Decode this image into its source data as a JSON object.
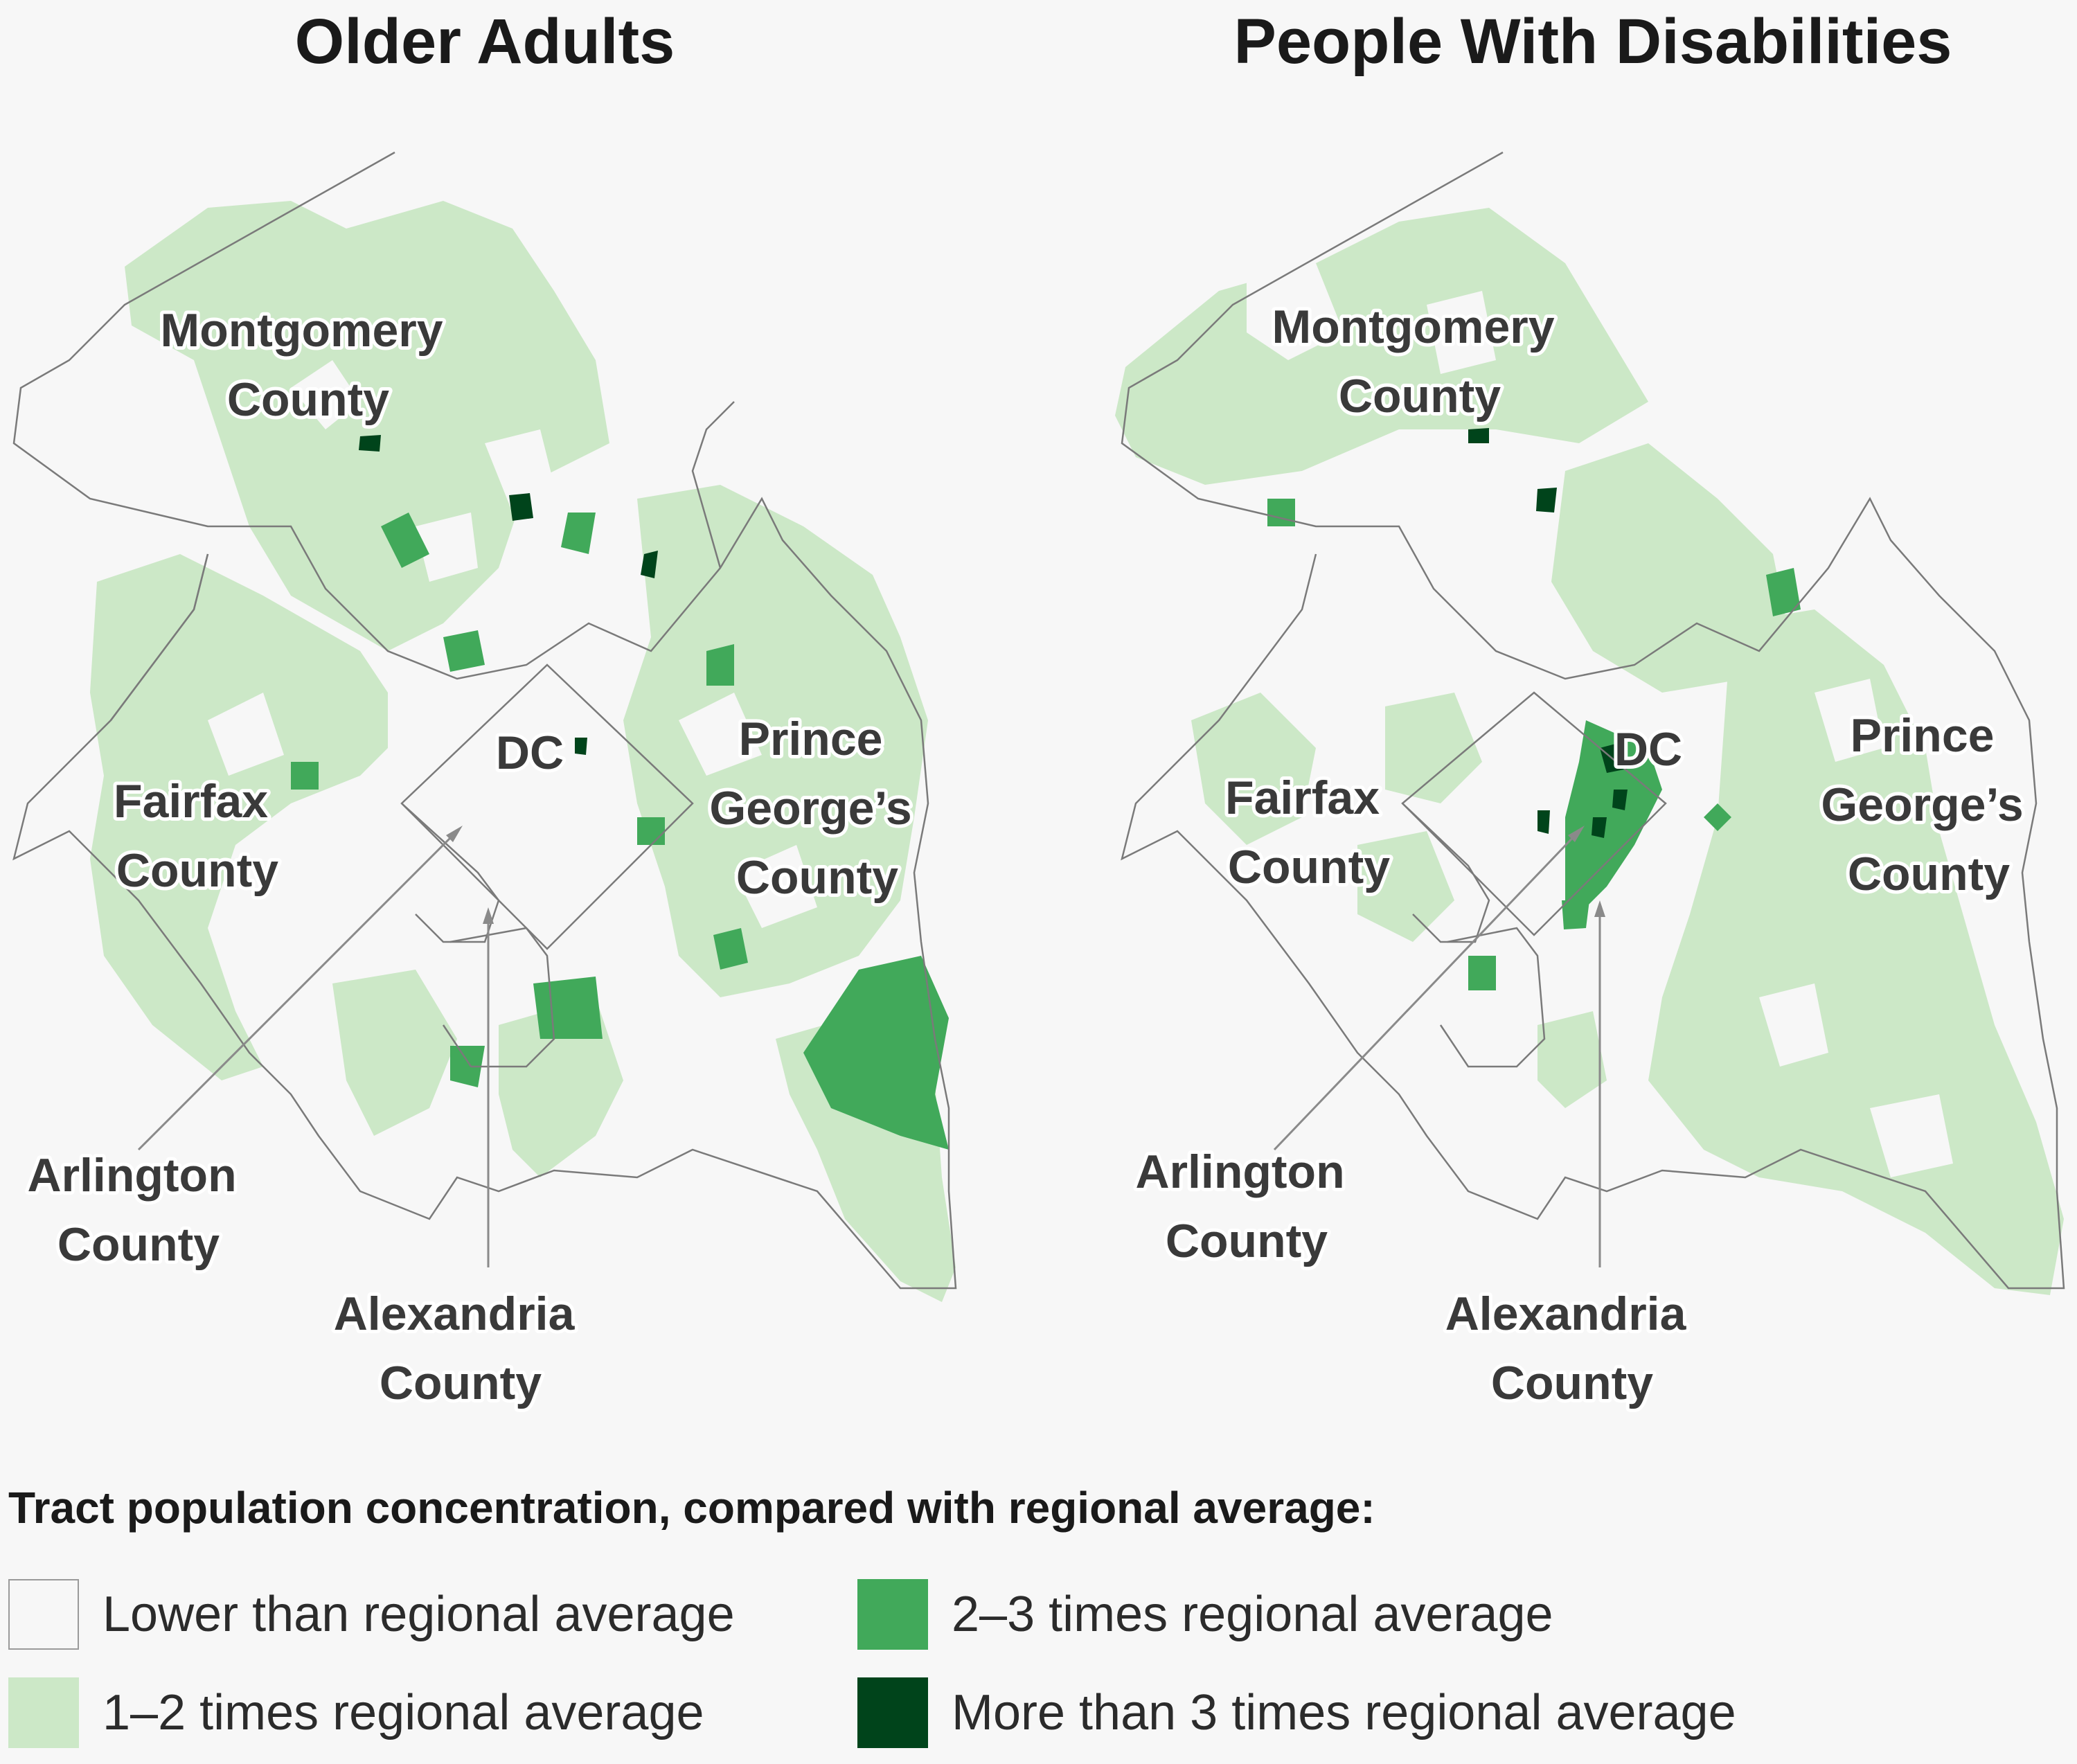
{
  "maps": [
    {
      "title": "Older Adults",
      "labels": {
        "montgomery": [
          "Montgomery",
          "County"
        ],
        "dc": "DC",
        "prince_georges": [
          "Prince",
          "George’s",
          "County"
        ],
        "fairfax": [
          "Fairfax",
          "County"
        ],
        "arlington": [
          "Arlington",
          "County"
        ],
        "alexandria": [
          "Alexandria",
          "County"
        ]
      }
    },
    {
      "title": "People With Disabilities",
      "labels": {
        "montgomery": [
          "Montgomery",
          "County"
        ],
        "dc": "DC",
        "prince_georges": [
          "Prince",
          "George’s",
          "County"
        ],
        "fairfax": [
          "Fairfax",
          "County"
        ],
        "arlington": [
          "Arlington",
          "County"
        ],
        "alexandria": [
          "Alexandria",
          "County"
        ]
      }
    }
  ],
  "legend": {
    "title": "Tract population concentration, compared with regional average:",
    "items": [
      {
        "label": "Lower than regional average",
        "color": "#f7f7f7",
        "border": "#9a9a9a"
      },
      {
        "label": "1–2 times regional average",
        "color": "#cce8c7",
        "border": "#cce8c7"
      },
      {
        "label": "2–3 times regional average",
        "color": "#41a95a",
        "border": "#41a95a"
      },
      {
        "label": "More than 3 times regional average",
        "color": "#00441b",
        "border": "#00441b"
      }
    ]
  },
  "colors": {
    "background": "#f7f7f7",
    "light": "#cce8c7",
    "medium": "#41a95a",
    "dark": "#00441b"
  }
}
